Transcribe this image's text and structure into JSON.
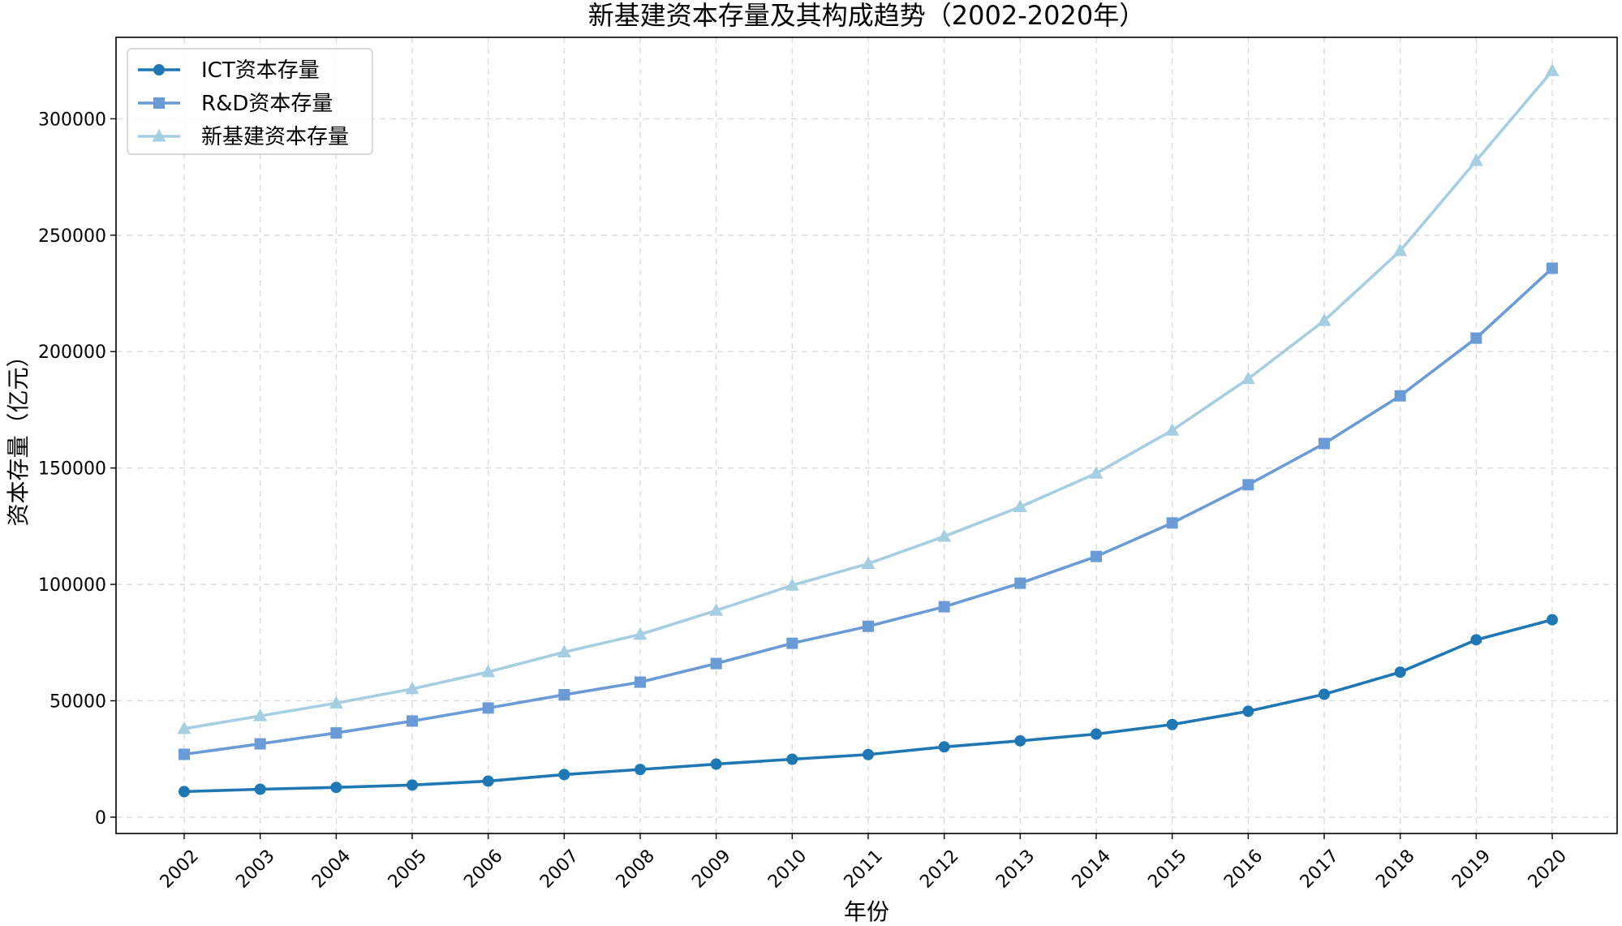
{
  "chart_data": {
    "type": "line",
    "title": "新基建资本存量及其构成趋势（2002-2020年）",
    "xlabel": "年份",
    "ylabel": "资本存量（亿元）",
    "x": [
      "2002",
      "2003",
      "2004",
      "2005",
      "2006",
      "2007",
      "2008",
      "2009",
      "2010",
      "2011",
      "2012",
      "2013",
      "2014",
      "2015",
      "2016",
      "2017",
      "2018",
      "2019",
      "2020"
    ],
    "ylim": [
      -7000,
      335000
    ],
    "yticks": [
      0,
      50000,
      100000,
      150000,
      200000,
      250000,
      300000
    ],
    "grid": true,
    "legend_position": "top-left",
    "series": [
      {
        "name": "ICT资本存量",
        "color": "#1f77b4",
        "marker": "circle",
        "values": [
          11000,
          12000,
          12800,
          13800,
          15500,
          18300,
          20500,
          22800,
          24900,
          26900,
          30200,
          32800,
          35700,
          39800,
          45500,
          52800,
          62300,
          76200,
          84800
        ]
      },
      {
        "name": "R&D资本存量",
        "color": "#6b9bd6",
        "marker": "square",
        "values": [
          27000,
          31500,
          36200,
          41300,
          46900,
          52600,
          58000,
          66000,
          74700,
          82000,
          90400,
          100500,
          112000,
          126400,
          142800,
          160500,
          181000,
          205800,
          235800
        ]
      },
      {
        "name": "新基建资本存量",
        "color": "#a6cee3",
        "marker": "triangle",
        "values": [
          38000,
          43500,
          49000,
          55100,
          62400,
          70900,
          78500,
          88800,
          99600,
          108900,
          120600,
          133300,
          147700,
          166200,
          188300,
          213300,
          243300,
          282000,
          320600
        ]
      }
    ]
  }
}
